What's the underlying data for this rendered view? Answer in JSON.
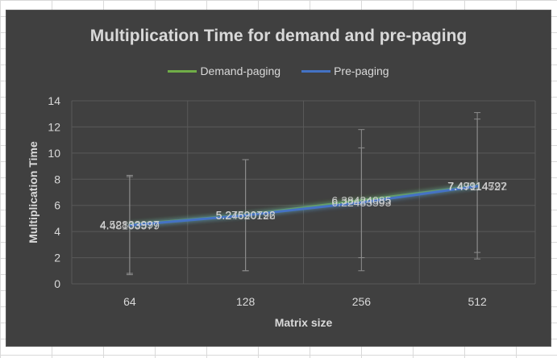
{
  "chart_data": {
    "type": "line",
    "title": "Multiplication Time for demand and pre-paging",
    "xlabel": "Matrix size",
    "ylabel": "Multiplication Time",
    "categories": [
      "64",
      "128",
      "256",
      "512"
    ],
    "ylim": [
      0,
      14
    ],
    "yticks": [
      0,
      2,
      4,
      6,
      8,
      10,
      12,
      14
    ],
    "grid": true,
    "legend_position": "top",
    "series": [
      {
        "name": "Demand-paging",
        "color": "#70ad47",
        "values": [
          4.52833997,
          5.27590792,
          6.38424085,
          7.49914792
        ],
        "labels": [
          "4.52833997",
          "5.27590792",
          "6.38424085",
          "7.49914792"
        ],
        "error_high": [
          8.2,
          9.5,
          10.4,
          12.6
        ],
        "error_low": [
          0.8,
          1.0,
          2.0,
          2.4
        ]
      },
      {
        "name": "Pre-paging",
        "color": "#4472c4",
        "values": [
          4.48103579,
          5.24620126,
          6.22483593,
          7.47114527
        ],
        "labels": [
          "4.48103579",
          "5.24620126",
          "6.22483593",
          "7.47114527"
        ],
        "error_high": [
          8.3,
          9.5,
          11.8,
          13.1
        ],
        "error_low": [
          0.7,
          1.0,
          1.0,
          1.9
        ]
      }
    ]
  }
}
